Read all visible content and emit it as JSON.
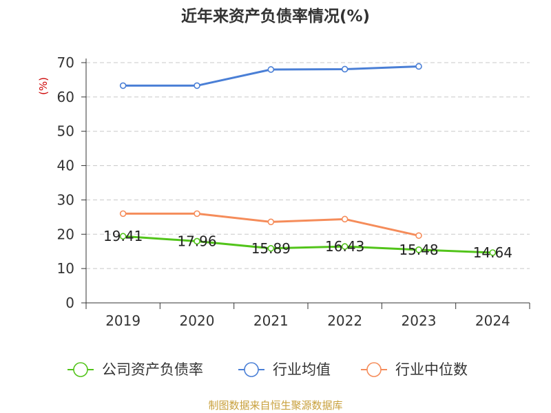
{
  "chart_data": {
    "type": "line",
    "title": "近年来资产负债率情况(%)",
    "ylabel": "(%)",
    "xlabel": "",
    "categories": [
      "2019",
      "2020",
      "2021",
      "2022",
      "2023",
      "2024"
    ],
    "ylim": [
      0,
      70
    ],
    "yticks": [
      0,
      10,
      20,
      30,
      40,
      50,
      60,
      70
    ],
    "grid": true,
    "legend_position": "bottom",
    "series": [
      {
        "name": "公司资产负债率",
        "color": "#52c41a",
        "show_labels": true,
        "values": [
          19.41,
          17.96,
          15.89,
          16.43,
          15.48,
          14.64
        ],
        "labels": [
          "19.41",
          "17.96",
          "15.89",
          "16.43",
          "15.48",
          "14.64"
        ]
      },
      {
        "name": "行业均值",
        "color": "#4a7fd6",
        "show_labels": false,
        "values": [
          63.3,
          63.3,
          68.0,
          68.1,
          68.9,
          null
        ]
      },
      {
        "name": "行业中位数",
        "color": "#f58c5a",
        "show_labels": false,
        "values": [
          26.0,
          26.0,
          23.6,
          24.4,
          19.6,
          null
        ]
      }
    ]
  },
  "source_text": "制图数据来自恒生聚源数据库"
}
